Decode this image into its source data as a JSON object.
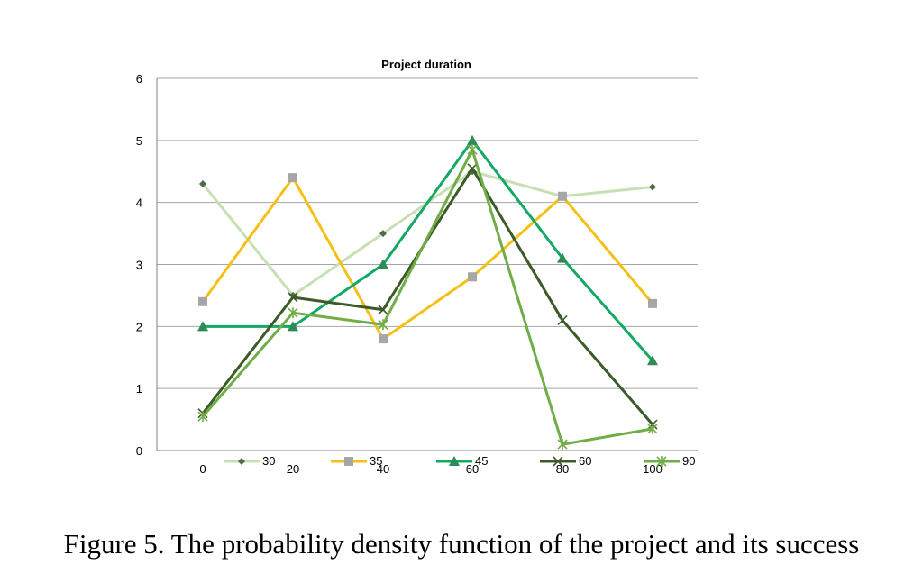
{
  "chart_data": {
    "type": "line",
    "title": "Project duration",
    "x": [
      0,
      20,
      40,
      60,
      80,
      100
    ],
    "x_tick_labels": [
      "0",
      "20",
      "40",
      "60",
      "80",
      "100"
    ],
    "y_tick_labels": [
      "0",
      "1",
      "2",
      "3",
      "4",
      "5",
      "6"
    ],
    "ylim": [
      0,
      6
    ],
    "grid": true,
    "legend_position": "bottom",
    "series": [
      {
        "name": "30",
        "values": [
          4.3,
          2.5,
          3.5,
          4.5,
          4.1,
          4.25
        ],
        "color": "#c6e0b4",
        "marker": "diamond",
        "marker_color": "#4f6b4a"
      },
      {
        "name": "35",
        "values": [
          2.4,
          4.4,
          1.8,
          2.8,
          4.1,
          2.37
        ],
        "color": "#f5c016",
        "marker": "square",
        "marker_color": "#a6a6a6"
      },
      {
        "name": "45",
        "values": [
          2.0,
          2.0,
          3.0,
          5.0,
          3.1,
          1.45
        ],
        "color": "#13a863",
        "marker": "triangle",
        "marker_color": "#2e8b57"
      },
      {
        "name": "60",
        "values": [
          0.6,
          2.47,
          2.27,
          4.55,
          2.1,
          0.42
        ],
        "color": "#3d5a29",
        "marker": "x",
        "marker_color": "#3d5a29"
      },
      {
        "name": "90",
        "values": [
          0.55,
          2.22,
          2.03,
          4.85,
          0.1,
          0.35
        ],
        "color": "#70ad47",
        "marker": "star",
        "marker_color": "#70ad47"
      }
    ]
  },
  "caption": "Figure 5. The probability density function of the project and its success"
}
